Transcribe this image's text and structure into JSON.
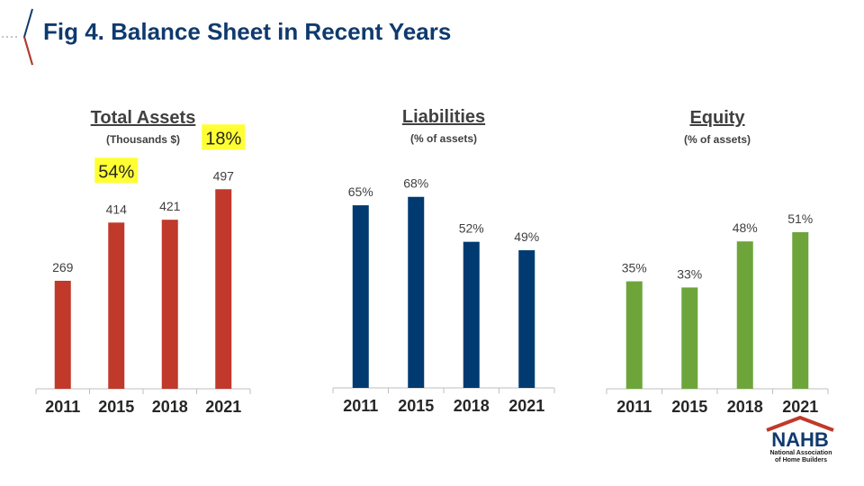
{
  "title": "Fig 4. Balance Sheet in Recent Years",
  "colors": {
    "title": "#0f3a6e",
    "assets": "#c0392b",
    "liabilities": "#003a70",
    "equity": "#6da53a",
    "callout": "#ffff33"
  },
  "logo": {
    "brand": "NAHB",
    "line1": "National Association",
    "line2": "of Home Builders"
  },
  "chart_data": [
    {
      "type": "bar",
      "title": "Total Assets",
      "subtitle": "(Thousands $)",
      "categories": [
        "2011",
        "2015",
        "2018",
        "2021"
      ],
      "values": [
        269,
        414,
        421,
        497
      ],
      "labels": [
        "269",
        "414",
        "421",
        "497"
      ],
      "color": "#c0392b",
      "ylim": [
        0,
        520
      ],
      "callouts": [
        {
          "category": "2015",
          "text": "54%"
        },
        {
          "category": "2021",
          "text": "18%"
        }
      ]
    },
    {
      "type": "bar",
      "title": "Liabilities",
      "subtitle": "(% of assets)",
      "categories": [
        "2011",
        "2015",
        "2018",
        "2021"
      ],
      "values": [
        65,
        68,
        52,
        49
      ],
      "labels": [
        "65%",
        "68%",
        "52%",
        "49%"
      ],
      "color": "#003a70",
      "ylim": [
        0,
        74
      ]
    },
    {
      "type": "bar",
      "title": "Equity",
      "subtitle": "(% of assets)",
      "categories": [
        "2011",
        "2015",
        "2018",
        "2021"
      ],
      "values": [
        35,
        33,
        48,
        51
      ],
      "labels": [
        "35%",
        "33%",
        "48%",
        "51%"
      ],
      "color": "#6da53a",
      "ylim": [
        0,
        68
      ]
    }
  ]
}
